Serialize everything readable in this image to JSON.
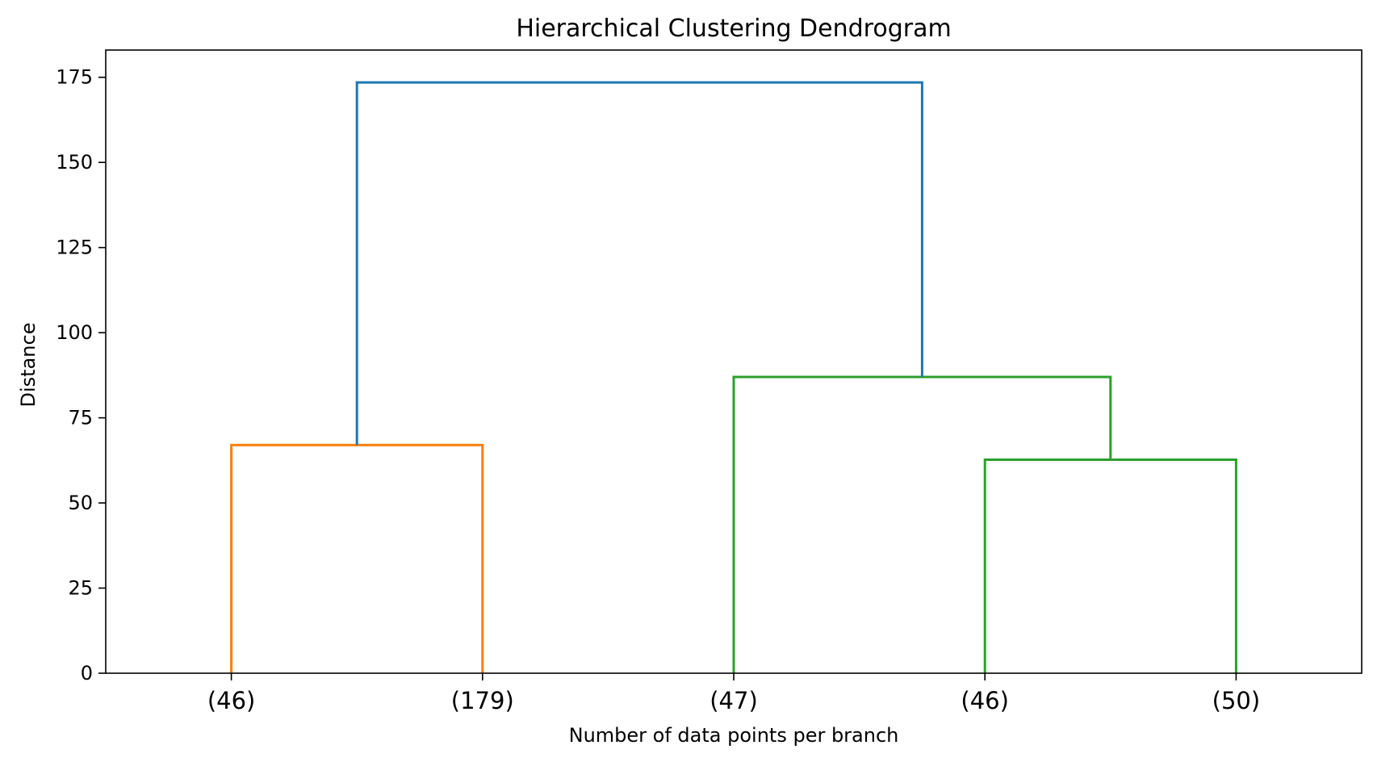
{
  "chart_data": {
    "type": "dendrogram",
    "title": "Hierarchical Clustering Dendrogram",
    "xlabel": "Number of data points per branch",
    "ylabel": "Distance",
    "ylim": [
      0,
      183
    ],
    "yticks": [
      0,
      25,
      50,
      75,
      100,
      125,
      150,
      175
    ],
    "ytick_labels": [
      "0",
      "25",
      "50",
      "75",
      "100",
      "125",
      "150",
      "175"
    ],
    "grid": false,
    "leaves": [
      "(46)",
      "(179)",
      "(47)",
      "(46)",
      "(50)"
    ],
    "links": [
      {
        "left": "(46)",
        "right": "(179)",
        "left_height": 0,
        "right_height": 0,
        "height": 67,
        "color": "#ff7f0e"
      },
      {
        "left": "(46)",
        "right": "(50)",
        "left_height": 0,
        "right_height": 0,
        "height": 62.7,
        "color": "#2ca02c"
      },
      {
        "left": "(47)",
        "right": "(46)+(50)",
        "left_height": 0,
        "right_height": 62.7,
        "height": 87,
        "color": "#2ca02c"
      },
      {
        "left": "(46)+(179)",
        "right": "(47)+(46)+(50)",
        "left_height": 67,
        "right_height": 87,
        "height": 173.5,
        "color": "#1f77b4"
      }
    ],
    "colors": {
      "cluster_1": "#ff7f0e",
      "cluster_2": "#2ca02c",
      "root": "#1f77b4"
    }
  }
}
